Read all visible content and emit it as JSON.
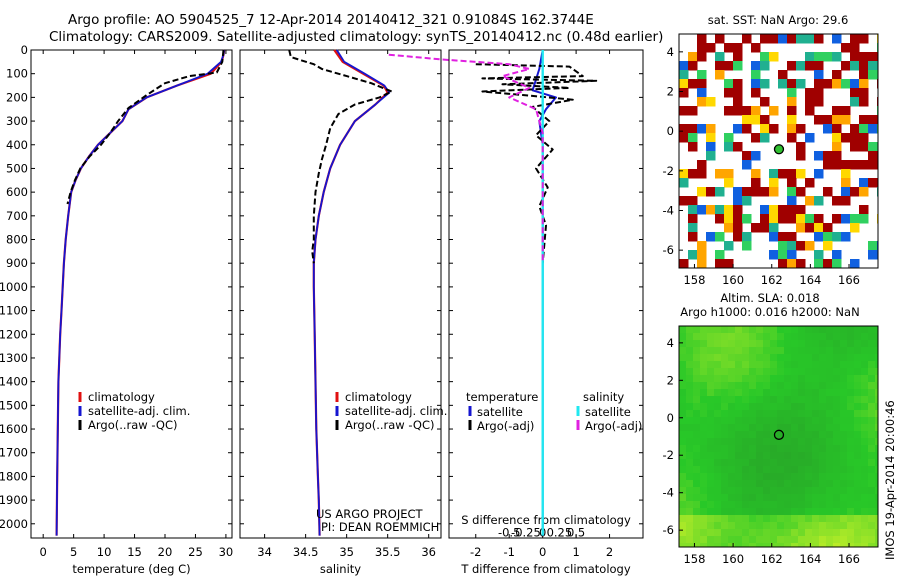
{
  "header": {
    "line1": "Argo profile: AO 5904525_7 12-Apr-2014 20140412_321 0.91084S 162.3744E",
    "line2": "Climatology: CARS2009. Satellite-adjusted climatology: synTS_20140412.nc (0.48d earlier)"
  },
  "colors": {
    "climatology": "#e01010",
    "satellite": "#1515d0",
    "argo": "#000000",
    "sat_salinity": "#20e8f0",
    "argo_salinity": "#e020e0",
    "warm_sst": "#a00000",
    "sla_green": "#30c030"
  },
  "chart_data": [
    {
      "type": "line",
      "name": "temperature-profile",
      "xlabel": "temperature (deg C)",
      "ylabel": "",
      "xlim": [
        -2,
        31
      ],
      "ylim": [
        2060,
        0
      ],
      "xticks": [
        0,
        5,
        10,
        15,
        20,
        25,
        30
      ],
      "yticks": [
        0,
        100,
        200,
        300,
        400,
        500,
        600,
        700,
        800,
        900,
        1000,
        1100,
        1200,
        1300,
        1400,
        1500,
        1600,
        1700,
        1800,
        1900,
        2000
      ],
      "legend": [
        "climatology",
        "satellite-adj. clim.",
        "Argo(..raw -QC)"
      ],
      "series": [
        {
          "name": "climatology",
          "x": [
            29.7,
            29.6,
            29.3,
            27.5,
            22,
            17,
            14,
            13,
            11,
            9,
            7.5,
            6.2,
            5.3,
            4.6,
            4.1,
            3.7,
            3.4,
            3.2,
            3.0,
            2.8,
            2.65,
            2.5,
            2.4,
            2.3,
            2.2
          ],
          "y": [
            0,
            20,
            50,
            100,
            150,
            200,
            250,
            300,
            350,
            400,
            450,
            500,
            550,
            600,
            700,
            800,
            900,
            1000,
            1100,
            1200,
            1300,
            1400,
            1600,
            1800,
            2050
          ]
        },
        {
          "name": "satellite-adj. clim.",
          "x": [
            29.7,
            29.6,
            29.2,
            27,
            22,
            17,
            14,
            13,
            11,
            9,
            7.5,
            6.2,
            5.3,
            4.6,
            4.1,
            3.7,
            3.4,
            3.2,
            3.0,
            2.8,
            2.65,
            2.5,
            2.4,
            2.3,
            2.2
          ],
          "y": [
            0,
            20,
            50,
            100,
            150,
            200,
            250,
            300,
            350,
            400,
            450,
            500,
            550,
            600,
            700,
            800,
            900,
            1000,
            1100,
            1200,
            1300,
            1400,
            1600,
            1800,
            2050
          ]
        },
        {
          "name": "Argo(..raw -QC)",
          "x": [
            29.6,
            29.4,
            28.5,
            24,
            20,
            17,
            14,
            12.3,
            11,
            9.5,
            7.6,
            6.1,
            5.2,
            4.5,
            4.0
          ],
          "y": [
            0,
            50,
            95,
            110,
            140,
            190,
            245,
            300,
            350,
            400,
            450,
            500,
            550,
            600,
            650
          ]
        }
      ]
    },
    {
      "type": "line",
      "name": "salinity-profile",
      "xlabel": "salinity",
      "xlim": [
        33.7,
        36.15
      ],
      "ylim": [
        2060,
        0
      ],
      "xticks": [
        34,
        34.5,
        35,
        35.5,
        36
      ],
      "legend": [
        "climatology",
        "satellite-adj. clim.",
        "Argo(..raw -QC)"
      ],
      "series": [
        {
          "name": "climatology",
          "x": [
            34.85,
            34.95,
            35.2,
            35.45,
            35.5,
            35.35,
            35.1,
            34.92,
            34.8,
            34.72,
            34.66,
            34.62,
            34.6,
            34.6,
            34.61,
            34.62,
            34.63,
            34.64,
            34.65,
            34.66,
            34.67
          ],
          "y": [
            0,
            50,
            100,
            150,
            180,
            230,
            300,
            400,
            500,
            600,
            700,
            800,
            900,
            1000,
            1200,
            1400,
            1600,
            1700,
            1800,
            1900,
            2050
          ]
        },
        {
          "name": "satellite-adj. clim.",
          "x": [
            34.88,
            34.97,
            35.22,
            35.46,
            35.52,
            35.35,
            35.1,
            34.92,
            34.8,
            34.72,
            34.66,
            34.62,
            34.6,
            34.6,
            34.61,
            34.62,
            34.63,
            34.64,
            34.65,
            34.66,
            34.67
          ],
          "y": [
            0,
            50,
            100,
            150,
            180,
            230,
            300,
            400,
            500,
            600,
            700,
            800,
            900,
            1000,
            1200,
            1400,
            1600,
            1700,
            1800,
            1900,
            2050
          ]
        },
        {
          "name": "Argo(..raw -QC)",
          "x": [
            34.3,
            34.32,
            34.6,
            34.7,
            35.0,
            35.3,
            35.55,
            35.4,
            35.1,
            34.9,
            34.8,
            34.75,
            34.7,
            34.66,
            34.62,
            34.6,
            34.6,
            34.58,
            34.6
          ],
          "y": [
            0,
            30,
            60,
            80,
            110,
            140,
            175,
            200,
            230,
            270,
            330,
            400,
            460,
            520,
            600,
            700,
            800,
            850,
            900
          ]
        }
      ]
    },
    {
      "type": "line",
      "name": "difference-profile",
      "xlabel_top": "S difference from climatology",
      "xlabel": "T difference from climatology",
      "xlim": [
        -2.8,
        3
      ],
      "ylim": [
        2060,
        0
      ],
      "xticks": [
        -2,
        -1,
        0,
        1,
        2
      ],
      "xticks_top": [
        -0.5,
        -0.25,
        0,
        0.25,
        0.5
      ],
      "legend_titles": [
        "temperature",
        "salinity"
      ],
      "legend": [
        "satellite",
        "Argo(-adj)",
        "satellite",
        "Argo(-adj)"
      ],
      "series": [
        {
          "name": "satellite",
          "x": [
            0,
            -0.1,
            -0.3,
            0.4,
            0.1,
            -0.1,
            0,
            0,
            0,
            0,
            0,
            0,
            0,
            0,
            0,
            0
          ],
          "y": [
            0,
            80,
            170,
            200,
            250,
            300,
            400,
            600,
            800,
            1000,
            1200,
            1400,
            1600,
            1800,
            1900,
            2050
          ]
        },
        {
          "name": "Argo(-adj)",
          "x": [
            -2.0,
            0.8,
            1.2,
            -1.8,
            1.6,
            -1.2,
            0.8,
            -1.8,
            -0.6,
            0.9,
            -0.3,
            0.2,
            -0.2,
            0.3,
            -0.2,
            0.15,
            -0.1,
            0.1,
            0
          ],
          "y": [
            60,
            70,
            110,
            120,
            130,
            145,
            160,
            175,
            190,
            210,
            240,
            300,
            360,
            420,
            500,
            580,
            660,
            740,
            900
          ]
        },
        {
          "name": "satellite",
          "x": [
            0,
            0,
            0,
            0,
            0,
            0,
            0,
            0,
            0,
            0,
            0,
            0,
            0,
            0
          ],
          "y": [
            0,
            100,
            200,
            300,
            400,
            600,
            800,
            1000,
            1200,
            1400,
            1600,
            1800,
            1950,
            2050
          ]
        },
        {
          "name": "Argo(-adj)",
          "x": [
            -2.3,
            -1.5,
            -0.5,
            -0.2,
            -0.6,
            -0.2,
            -0.5,
            -0.1,
            0,
            0
          ],
          "y": [
            20,
            40,
            60,
            80,
            110,
            160,
            200,
            250,
            350,
            900
          ]
        }
      ]
    },
    {
      "type": "heatmap",
      "name": "sst-map",
      "title": "sat. SST: NaN Argo: 29.6",
      "xticks": [
        158,
        160,
        162,
        164,
        166
      ],
      "yticks": [
        4,
        2,
        0,
        -2,
        -4,
        -6
      ],
      "xlim": [
        157.2,
        167.5
      ],
      "ylim": [
        -6.9,
        4.9
      ],
      "argo_position": {
        "lon": 162.3744,
        "lat": -0.91084
      }
    },
    {
      "type": "heatmap",
      "name": "sla-map",
      "title_line1": "Altim. SLA: 0.018",
      "title_line2": "Argo h1000: 0.016 h2000: NaN",
      "xticks": [
        158,
        160,
        162,
        164,
        166
      ],
      "yticks": [
        4,
        2,
        0,
        -2,
        -4,
        -6
      ],
      "xlim": [
        157.2,
        167.5
      ],
      "ylim": [
        -6.9,
        4.9
      ],
      "argo_position": {
        "lon": 162.3744,
        "lat": -0.91084
      }
    }
  ],
  "annotations": {
    "project_line1": "US ARGO PROJECT",
    "project_line2": "PI: DEAN ROEMMICH",
    "imos_stamp": "IMOS 19-Apr-2014 20:00:46"
  }
}
